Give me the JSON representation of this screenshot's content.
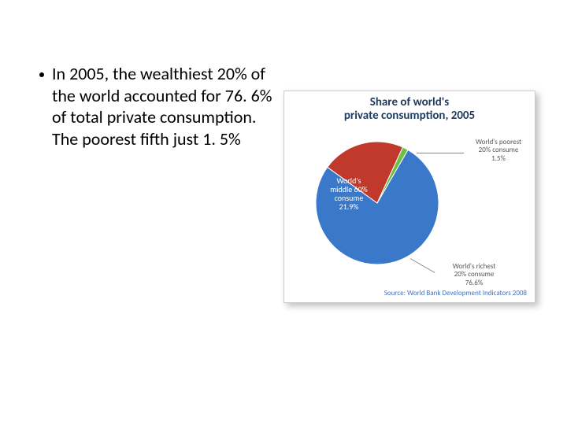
{
  "bullet": {
    "text": "In 2005, the wealthiest 20% of the world accounted for 76. 6% of total private consumption. The poorest fifth just 1. 5%"
  },
  "chart": {
    "type": "pie",
    "title_line1": "Share of world's",
    "title_line2": "private consumption, 2005",
    "title_color": "#1f3a5f",
    "title_fontsize": 15,
    "background_color": "#ffffff",
    "border_color": "#cccccc",
    "slices": [
      {
        "name": "richest",
        "value": 76.6,
        "color": "#3a78c9"
      },
      {
        "name": "middle",
        "value": 21.9,
        "color": "#c0392b"
      },
      {
        "name": "poorest",
        "value": 1.5,
        "color": "#6fbf44"
      }
    ],
    "labels": {
      "poorest": {
        "line1": "World's poorest",
        "line2": "20% consume",
        "line3": "1.5%"
      },
      "middle": {
        "line1": "World's",
        "line2": "middle 60%",
        "line3": "consume",
        "line4": "21.9%"
      },
      "richest": {
        "line1": "World's richest",
        "line2": "20% consume",
        "line3": "76.6%"
      }
    },
    "source": "Source: World Bank Development Indicators 2008",
    "source_color": "#4472c4",
    "start_angle_deg": -60,
    "radius": 78
  }
}
